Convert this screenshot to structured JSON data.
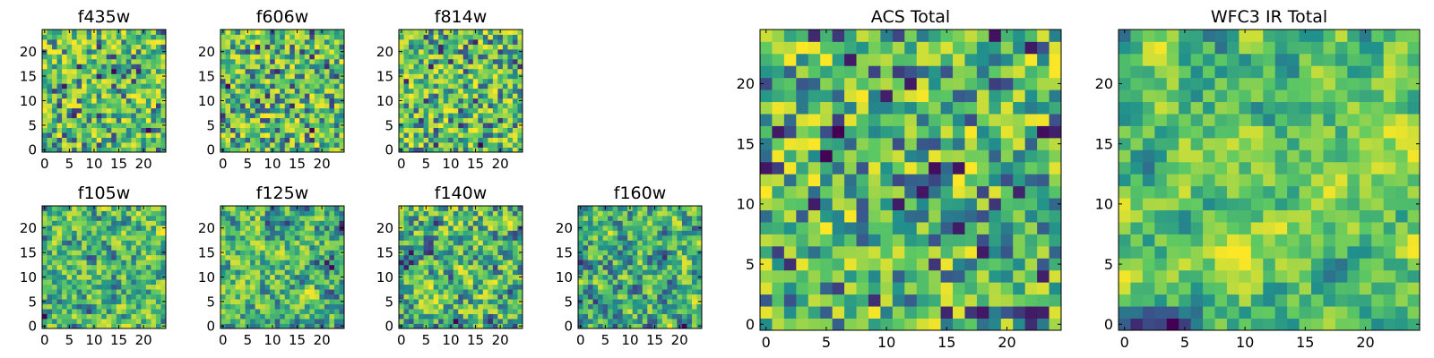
{
  "figure": {
    "colormap": "viridis",
    "colormap_stops": [
      "#440154",
      "#3b528b",
      "#21918c",
      "#5ec962",
      "#fde725"
    ],
    "frame_color": "#000000"
  },
  "chart_data": [
    {
      "type": "heatmap",
      "title": "f435w",
      "size": 25,
      "xticks": [
        0,
        5,
        10,
        15,
        20
      ],
      "yticks": [
        0,
        5,
        10,
        15,
        20
      ],
      "xlim": [
        0,
        24
      ],
      "ylim": [
        0,
        24
      ]
    },
    {
      "type": "heatmap",
      "title": "f606w",
      "size": 25,
      "xticks": [
        0,
        5,
        10,
        15,
        20
      ],
      "yticks": [
        0,
        5,
        10,
        15,
        20
      ],
      "xlim": [
        0,
        24
      ],
      "ylim": [
        0,
        24
      ]
    },
    {
      "type": "heatmap",
      "title": "f814w",
      "size": 25,
      "xticks": [
        0,
        5,
        10,
        15,
        20
      ],
      "yticks": [
        0,
        5,
        10,
        15,
        20
      ],
      "xlim": [
        0,
        24
      ],
      "ylim": [
        0,
        24
      ]
    },
    {
      "type": "heatmap",
      "title": "f105w",
      "size": 25,
      "xticks": [
        0,
        5,
        10,
        15,
        20
      ],
      "yticks": [
        0,
        5,
        10,
        15,
        20
      ],
      "xlim": [
        0,
        24
      ],
      "ylim": [
        0,
        24
      ]
    },
    {
      "type": "heatmap",
      "title": "f125w",
      "size": 25,
      "xticks": [
        0,
        5,
        10,
        15,
        20
      ],
      "yticks": [
        0,
        5,
        10,
        15,
        20
      ],
      "xlim": [
        0,
        24
      ],
      "ylim": [
        0,
        24
      ]
    },
    {
      "type": "heatmap",
      "title": "f140w",
      "size": 25,
      "xticks": [
        0,
        5,
        10,
        15,
        20
      ],
      "yticks": [
        0,
        5,
        10,
        15,
        20
      ],
      "xlim": [
        0,
        24
      ],
      "ylim": [
        0,
        24
      ]
    },
    {
      "type": "heatmap",
      "title": "f160w",
      "size": 25,
      "xticks": [
        0,
        5,
        10,
        15,
        20
      ],
      "yticks": [
        0,
        5,
        10,
        15,
        20
      ],
      "xlim": [
        0,
        24
      ],
      "ylim": [
        0,
        24
      ]
    },
    {
      "type": "heatmap",
      "title": "ACS Total",
      "size": 25,
      "xticks": [
        0,
        5,
        10,
        15,
        20
      ],
      "yticks": [
        0,
        5,
        10,
        15,
        20
      ],
      "xlim": [
        0,
        24
      ],
      "ylim": [
        0,
        24
      ]
    },
    {
      "type": "heatmap",
      "title": "WFC3 IR Total",
      "size": 25,
      "xticks": [
        0,
        5,
        10,
        15,
        20
      ],
      "yticks": [
        0,
        5,
        10,
        15,
        20
      ],
      "xlim": [
        0,
        24
      ],
      "ylim": [
        0,
        24
      ]
    }
  ]
}
